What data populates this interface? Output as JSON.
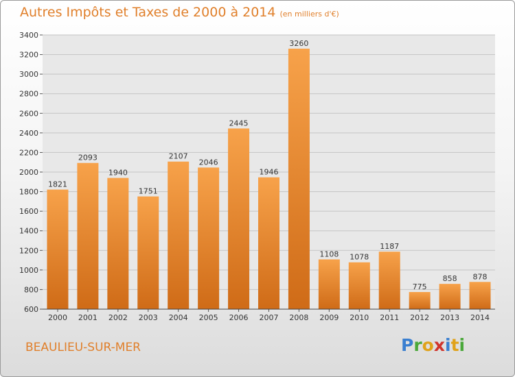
{
  "header": {
    "title": "Autres Impôts et Taxes de 2000 à 2014",
    "unit": "(en milliers d'€)"
  },
  "footer": {
    "location": "BEAULIEU-SUR-MER",
    "logo_letters": [
      "P",
      "r",
      "o",
      "x",
      "i",
      "t",
      "i"
    ],
    "logo_colors": [
      "#3a7fd0",
      "#4aa83a",
      "#e0a21a",
      "#d0342c",
      "#3a7fd0",
      "#e0a21a",
      "#4aa83a"
    ]
  },
  "colors": {
    "bar_top": "#f7a24a",
    "bar_bottom": "#cf6b17",
    "title": "#e07f2a"
  },
  "chart_data": {
    "type": "bar",
    "title": "Autres Impôts et Taxes de 2000 à 2014",
    "xlabel": "",
    "ylabel": "",
    "categories": [
      "2000",
      "2001",
      "2002",
      "2003",
      "2004",
      "2005",
      "2006",
      "2007",
      "2008",
      "2009",
      "2010",
      "2011",
      "2012",
      "2013",
      "2014"
    ],
    "values": [
      1821,
      2093,
      1940,
      1751,
      2107,
      2046,
      2445,
      1946,
      3260,
      1108,
      1078,
      1187,
      775,
      858,
      878
    ],
    "ylim": [
      600,
      3400
    ],
    "yticks": [
      600,
      800,
      1000,
      1200,
      1400,
      1600,
      1800,
      2000,
      2200,
      2400,
      2600,
      2800,
      3000,
      3200,
      3400
    ],
    "grid": true,
    "legend": "none"
  }
}
